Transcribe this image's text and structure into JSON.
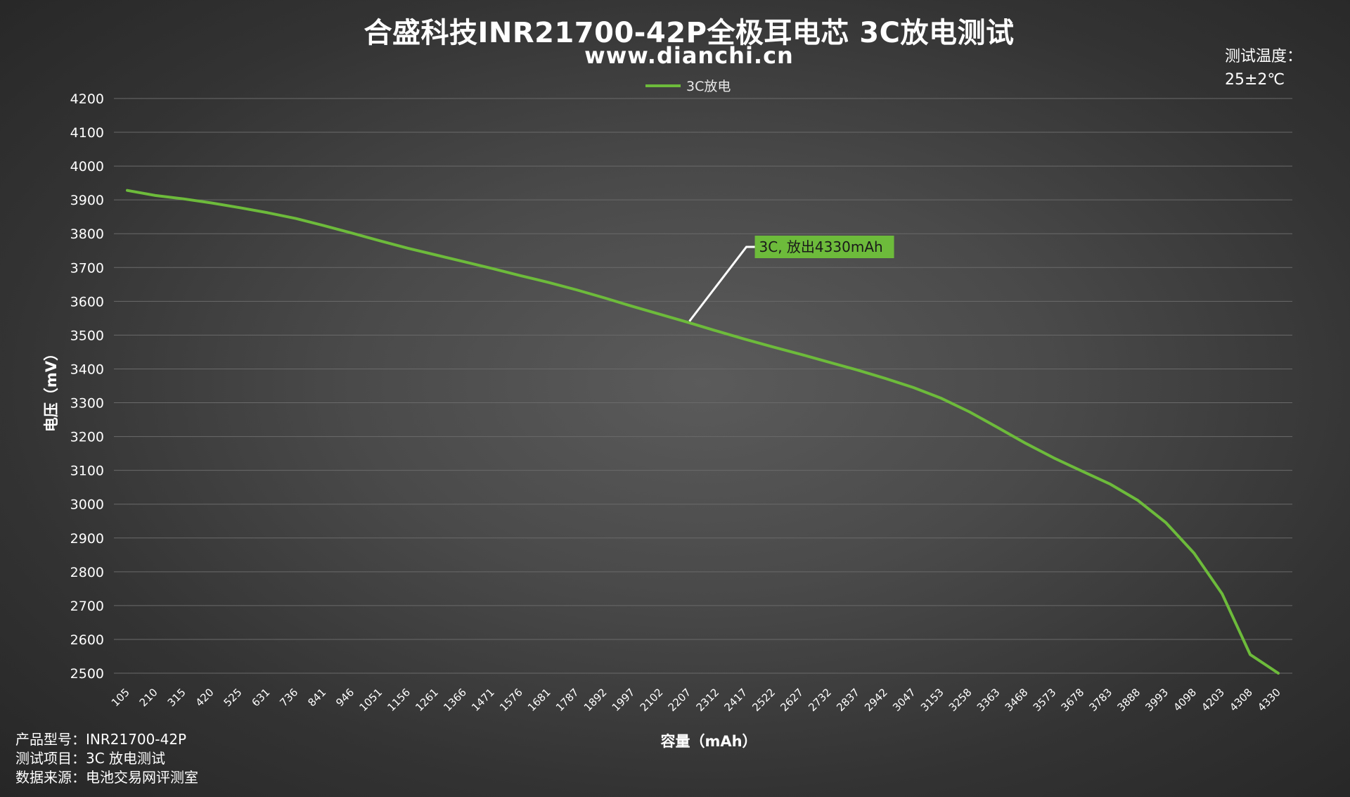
{
  "header": {
    "title": "合盛科技INR21700-42P全极耳电芯 3C放电测试",
    "subtitle": "www.dianchi.cn"
  },
  "temperature": {
    "label": "测试温度：",
    "value": "25±2℃"
  },
  "info": {
    "model": "产品型号：INR21700-42P",
    "test_item": "测试项目：3C 放电测试",
    "source": "数据来源：电池交易网评测室"
  },
  "colors": {
    "series": "#6dbb3b",
    "annotation_bg": "#6dbb3b",
    "gridline": "#6a6a6a"
  },
  "chart_data": {
    "type": "line",
    "title": "合盛科技INR21700-42P全极耳电芯 3C放电测试",
    "xlabel": "容量（mAh）",
    "ylabel": "电压（mV）",
    "ylim": [
      2500,
      4200
    ],
    "yticks": [
      4200,
      4100,
      4000,
      3900,
      3800,
      3700,
      3600,
      3500,
      3400,
      3300,
      3200,
      3100,
      3000,
      2900,
      2800,
      2700,
      2600,
      2500
    ],
    "categories": [
      "105",
      "210",
      "315",
      "420",
      "525",
      "631",
      "736",
      "841",
      "946",
      "1051",
      "1156",
      "1261",
      "1366",
      "1471",
      "1576",
      "1681",
      "1787",
      "1892",
      "1997",
      "2102",
      "2207",
      "2312",
      "2417",
      "2522",
      "2627",
      "2732",
      "2837",
      "2942",
      "3047",
      "3153",
      "3258",
      "3363",
      "3468",
      "3573",
      "3678",
      "3783",
      "3888",
      "3993",
      "4098",
      "4203",
      "4308",
      "4330"
    ],
    "grid": true,
    "legend_position": "top-center",
    "series": [
      {
        "name": "3C放电",
        "values": [
          3928,
          3913,
          3903,
          3891,
          3877,
          3862,
          3845,
          3824,
          3802,
          3779,
          3757,
          3737,
          3717,
          3697,
          3676,
          3656,
          3634,
          3610,
          3585,
          3561,
          3537,
          3512,
          3488,
          3465,
          3443,
          3420,
          3397,
          3372,
          3345,
          3313,
          3273,
          3227,
          3180,
          3137,
          3098,
          3060,
          3011,
          2945,
          2855,
          2735,
          2555,
          2500
        ]
      }
    ],
    "annotation": {
      "text": "3C, 放出4330mAh",
      "category": "2207"
    }
  }
}
